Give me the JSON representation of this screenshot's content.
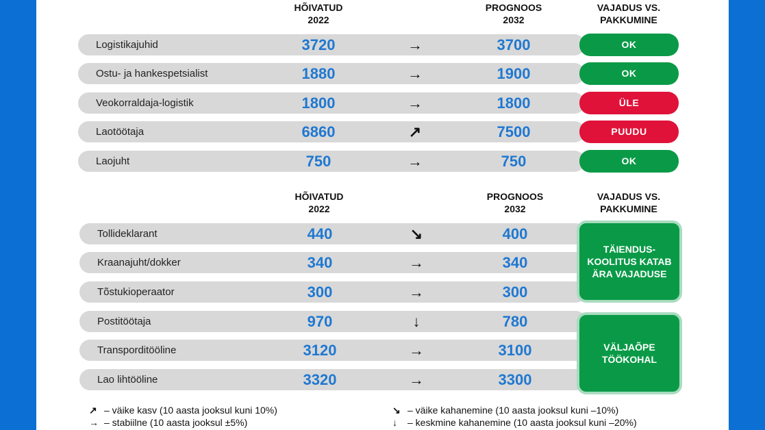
{
  "section1": {
    "headers": {
      "employed_line1": "HÕIVATUD",
      "employed_line2": "2022",
      "forecast_line1": "PROGNOOS",
      "forecast_line2": "2032",
      "need_line1": "VAJADUS VS.",
      "need_line2": "PAKKUMINE"
    },
    "rows": [
      {
        "label": "Logistikajuhid",
        "employed": "3720",
        "arrow": "→",
        "forecast": "3700",
        "status": "OK",
        "status_color": "#0a9a47"
      },
      {
        "label": "Ostu- ja hankespetsialist",
        "employed": "1880",
        "arrow": "→",
        "forecast": "1900",
        "status": "OK",
        "status_color": "#0a9a47"
      },
      {
        "label": "Veokorraldaja-logistik",
        "employed": "1800",
        "arrow": "→",
        "forecast": "1800",
        "status": "ÜLE",
        "status_color": "#e0123a"
      },
      {
        "label": "Laotöötaja",
        "employed": "6860",
        "arrow": "↗",
        "forecast": "7500",
        "status": "PUUDU",
        "status_color": "#e0123a"
      },
      {
        "label": "Laojuht",
        "employed": "750",
        "arrow": "→",
        "forecast": "750",
        "status": "OK",
        "status_color": "#0a9a47"
      }
    ]
  },
  "section2": {
    "headers": {
      "employed_line1": "HÕIVATUD",
      "employed_line2": "2022",
      "forecast_line1": "PROGNOOS",
      "forecast_line2": "2032",
      "need_line1": "VAJADUS VS.",
      "need_line2": "PAKKUMINE"
    },
    "rows": [
      {
        "label": "Tollideklarant",
        "employed": "440",
        "arrow": "↘",
        "forecast": "400"
      },
      {
        "label": "Kraanajuht/dokker",
        "employed": "340",
        "arrow": "→",
        "forecast": "340"
      },
      {
        "label": "Tõstukioperaator",
        "employed": "300",
        "arrow": "→",
        "forecast": "300"
      },
      {
        "label": "Postitöötaja",
        "employed": "970",
        "arrow": "↓",
        "forecast": "780"
      },
      {
        "label": "Transporditööline",
        "employed": "3120",
        "arrow": "→",
        "forecast": "3100"
      },
      {
        "label": "Lao lihtööline",
        "employed": "3320",
        "arrow": "→",
        "forecast": "3300"
      }
    ],
    "group_boxes": [
      {
        "text": "TÄIENDUS-KOOLITUS KATAB ÄRA VAJADUSE"
      },
      {
        "text": "VÄLJAÕPE TÖÖKOHAL"
      }
    ]
  },
  "legend": [
    {
      "glyph": "↗",
      "text": "– väike kasv (10 aasta jooksul kuni 10%)"
    },
    {
      "glyph": "→",
      "text": "– stabiilne (10 aasta jooksul ±5%)"
    },
    {
      "glyph": "↘",
      "text": "– väike kahanemine (10 aasta jooksul kuni –10%)"
    },
    {
      "glyph": "↓",
      "text": "– keskmine kahanemine (10 aasta jooksul kuni –20%)"
    }
  ],
  "colors": {
    "background": "#0b6fd3",
    "number": "#1f78d1",
    "ok": "#0a9a47",
    "alert": "#e0123a",
    "row": "#d8d8d8"
  }
}
